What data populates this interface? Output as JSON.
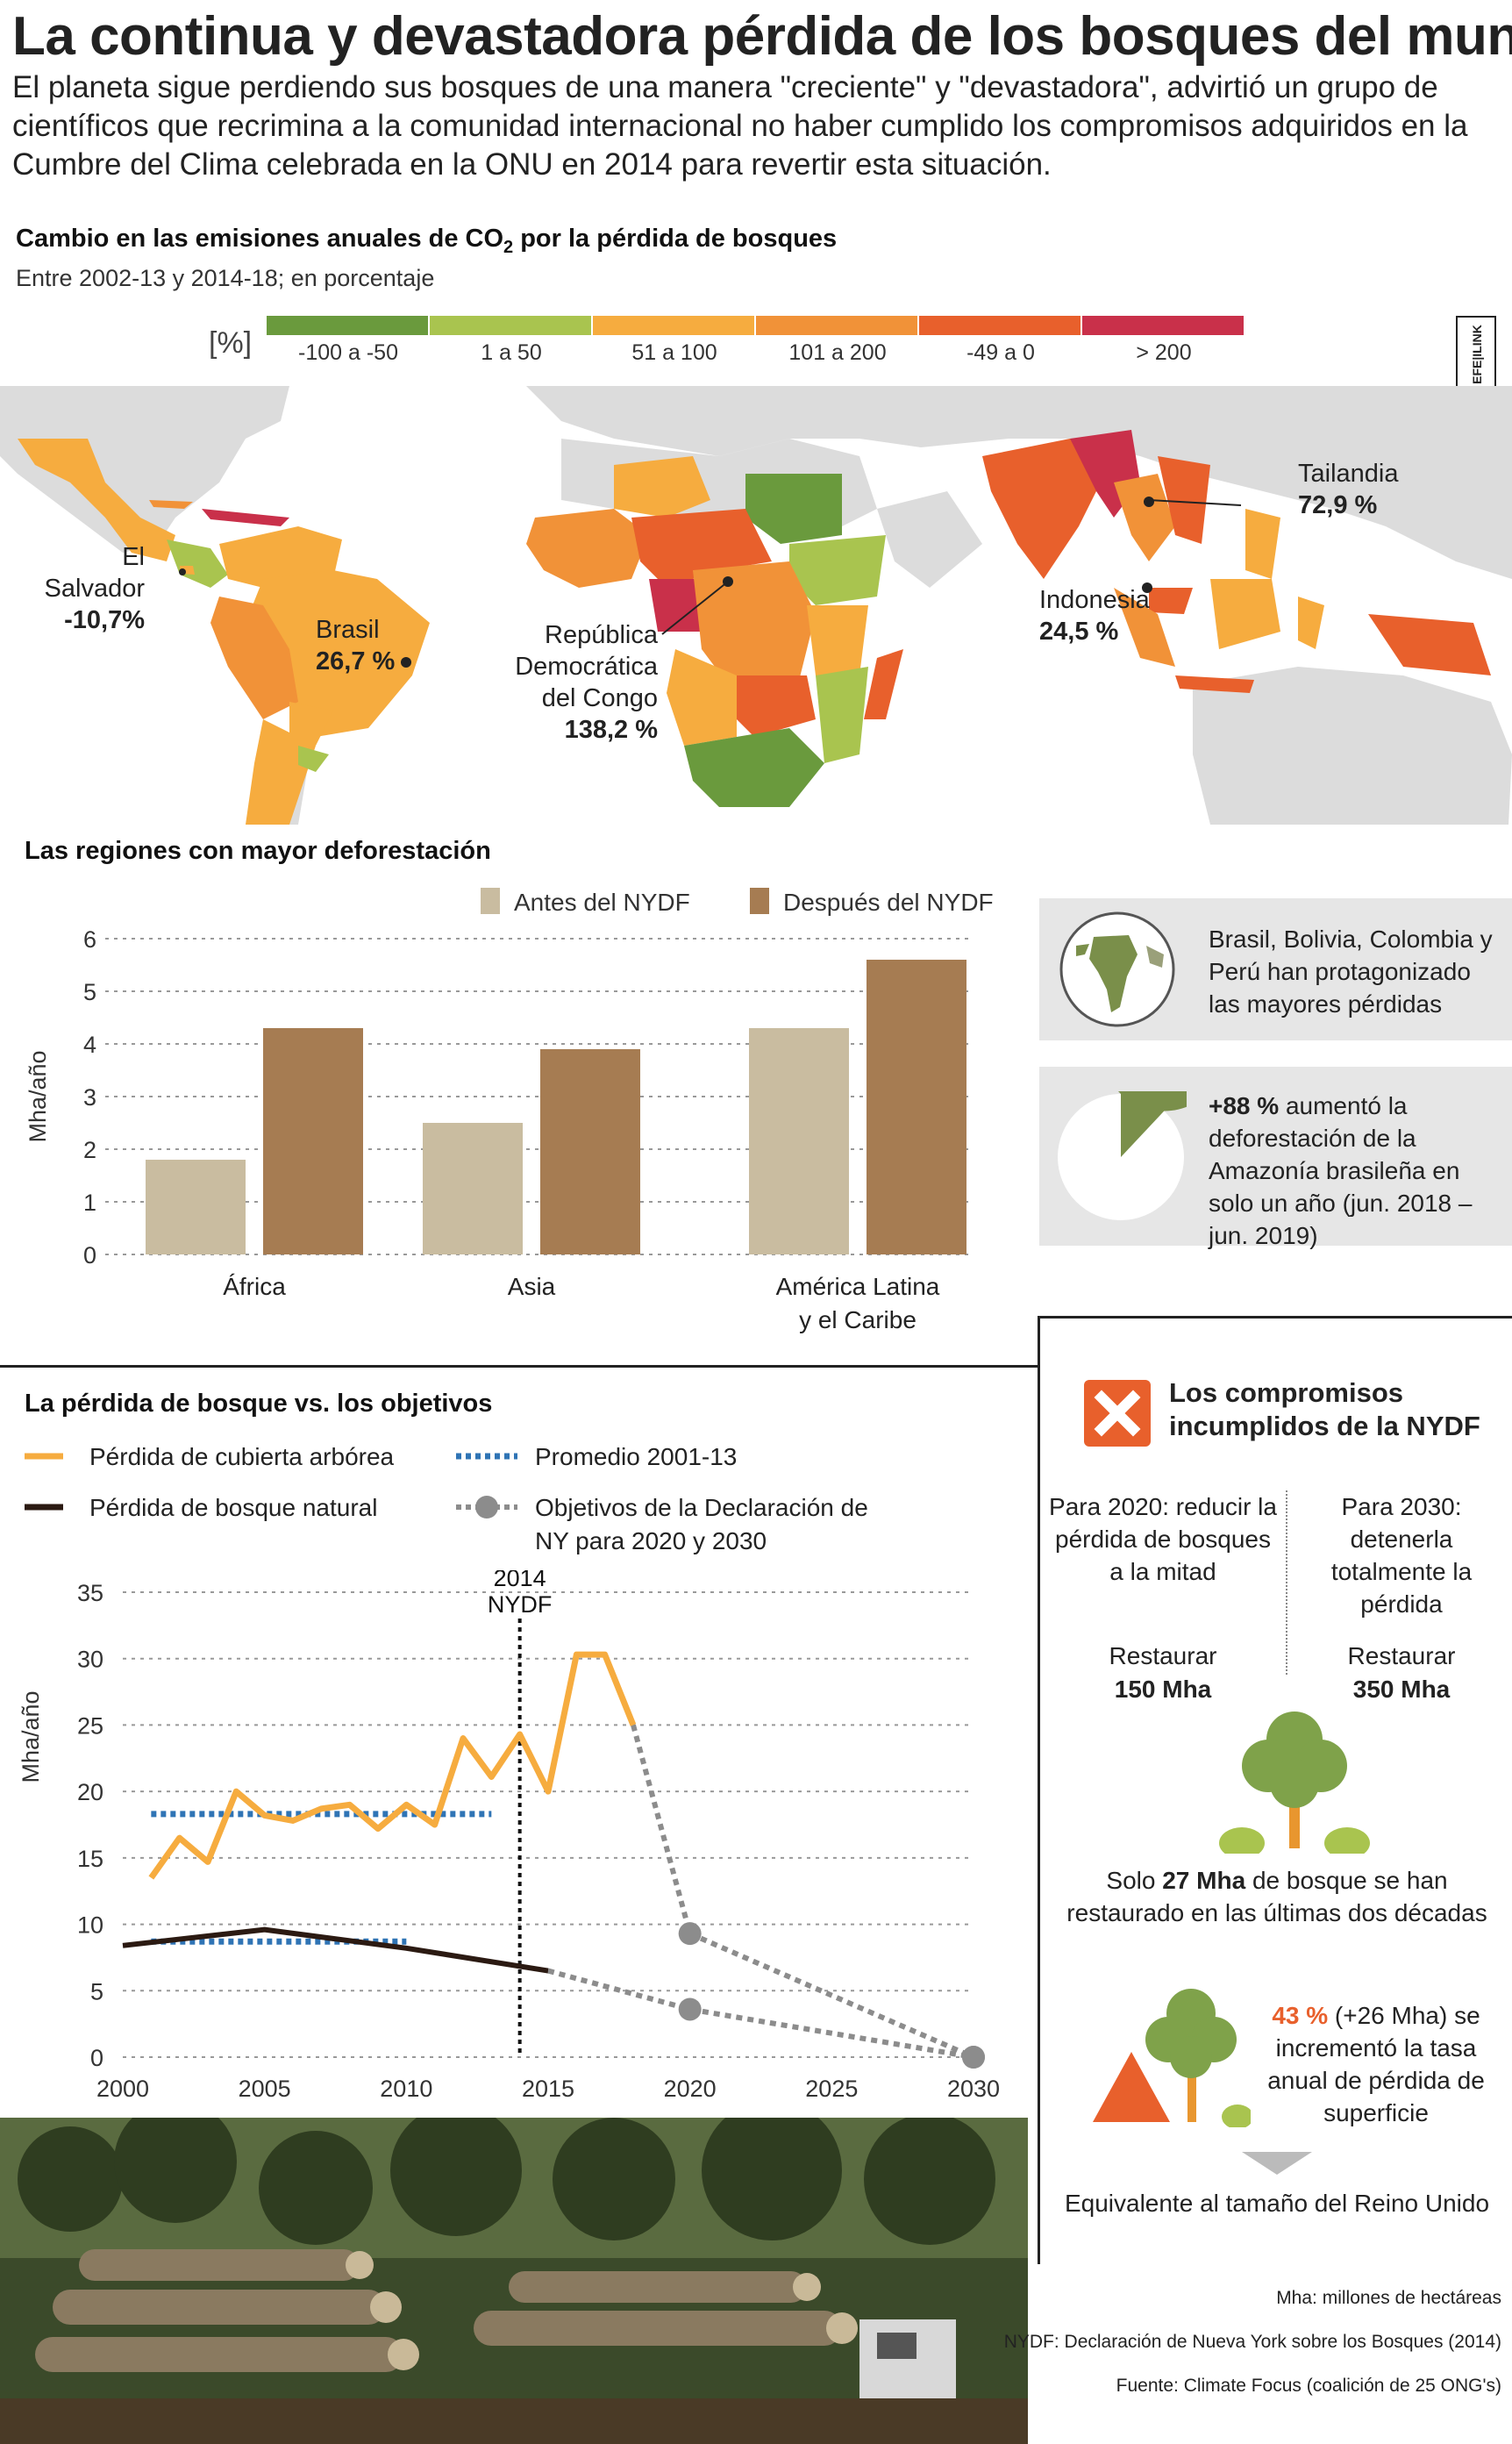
{
  "header": {
    "title": "La continua y devastadora pérdida de los bosques del mundo",
    "intro": "El planeta sigue perdiendo sus bosques de una manera \"creciente\" y \"devastadora\", advirtió un grupo de científicos que recrimina a la comunidad internacional no haber cumplido los compromisos adquiridos en la Cumbre del Clima celebrada en la ONU en 2014 para revertir esta situación."
  },
  "credit": "EFE|ILINK",
  "map": {
    "title_main": "Cambio en las emisiones anuales de CO",
    "title_sub": "2",
    "title_end": " por la pérdida de bosques",
    "subtitle": "Entre 2002-13 y 2014-18; en porcentaje",
    "unit": "[%]",
    "legend": [
      {
        "label": "-100 a -50",
        "color": "#6a9a3d"
      },
      {
        "label": "1 a 50",
        "color": "#a9c44f"
      },
      {
        "label": "51 a 100",
        "color": "#f6ac3f"
      },
      {
        "label": "101 a 200",
        "color": "#f19238"
      },
      {
        "label": "-49 a 0",
        "color": "#e8602c"
      },
      {
        "label": "> 200",
        "color": "#c9304a"
      }
    ],
    "callouts": [
      {
        "name": "El Salvador",
        "value": "-10,7%"
      },
      {
        "name": "Brasil",
        "value": "26,7 %"
      },
      {
        "name": "República Democrática del Congo",
        "value": "138,2 %"
      },
      {
        "name": "Tailandia",
        "value": "72,9 %"
      },
      {
        "name": "Indonesia",
        "value": "24,5 %"
      }
    ]
  },
  "chart_data": [
    {
      "type": "bar",
      "title": "Las regiones con mayor deforestación",
      "ylabel": "Mha/año",
      "ylim": [
        0,
        6
      ],
      "yticks": [
        "0",
        "1",
        "2",
        "3",
        "4",
        "5",
        "6"
      ],
      "categories": [
        "África",
        "Asia",
        "América Latina y el Caribe"
      ],
      "category_lines": [
        [
          "África"
        ],
        [
          "Asia"
        ],
        [
          "América Latina",
          "y el Caribe"
        ]
      ],
      "series": [
        {
          "name": "Antes del NYDF",
          "color": "#c9bca0",
          "values": [
            1.8,
            2.5,
            4.3
          ]
        },
        {
          "name": "Después del NYDF",
          "color": "#a67c52",
          "values": [
            4.3,
            3.9,
            5.6
          ]
        }
      ],
      "grid": true,
      "legend_position": "top"
    },
    {
      "type": "line",
      "title": "La pérdida de bosque vs. los objetivos",
      "ylabel": "Mha/año",
      "ylim": [
        0,
        35
      ],
      "xlim": [
        2000,
        2030
      ],
      "yticks": [
        "0",
        "5",
        "10",
        "15",
        "20",
        "25",
        "30",
        "35"
      ],
      "xticks": [
        "2000",
        "2005",
        "2010",
        "2015",
        "2020",
        "2025",
        "2030"
      ],
      "annotation": {
        "x": 2014,
        "lines": [
          "2014",
          "NYDF"
        ]
      },
      "series": [
        {
          "name": "Pérdida de cubierta arbórea",
          "color": "#f6ac3f",
          "style": "solid",
          "x": [
            2001,
            2002,
            2003,
            2004,
            2005,
            2006,
            2007,
            2008,
            2009,
            2010,
            2011,
            2012,
            2013,
            2014,
            2015,
            2016,
            2017,
            2018
          ],
          "y": [
            13.5,
            16.5,
            14.7,
            20,
            18.2,
            17.8,
            18.7,
            19,
            17.2,
            19,
            17.5,
            24,
            21.1,
            24.3,
            20,
            30.3,
            30.3,
            25
          ]
        },
        {
          "name": "Pérdida de bosque natural",
          "color": "#2b1a12",
          "style": "solid",
          "x": [
            2000,
            2005,
            2010,
            2015
          ],
          "y": [
            8.4,
            9.6,
            8.2,
            6.5
          ]
        },
        {
          "name": "Promedio 2001-13",
          "color": "#2f74b5",
          "style": "dotted",
          "segments": [
            {
              "x": [
                2001,
                2013
              ],
              "y": [
                18.3,
                18.3
              ]
            },
            {
              "x": [
                2001,
                2010
              ],
              "y": [
                8.7,
                8.7
              ]
            }
          ]
        },
        {
          "name": "Objetivos de la Declaración de NY para 2020 y 2030",
          "color": "#8c8c8c",
          "style": "dotted-markers",
          "segments": [
            {
              "x": [
                2018,
                2020,
                2030
              ],
              "y": [
                25,
                9.3,
                0
              ]
            },
            {
              "x": [
                2015,
                2020,
                2030
              ],
              "y": [
                6.5,
                3.6,
                0
              ]
            }
          ]
        }
      ],
      "grid": true,
      "legend_position": "top"
    }
  ],
  "panels": {
    "brazil_text": "Brasil, Bolivia, Colombia y Perú han protagonizado las mayores pérdidas",
    "amazon_value": "+88 %",
    "amazon_text": " aumentó la deforestación de la Amazonía brasileña en solo un año (jun. 2018 – jun. 2019)",
    "amazon_share": 0.88
  },
  "commitments": {
    "title_line1": "Los compromisos",
    "title_line2": "incumplidos de la NYDF",
    "col2020": {
      "heading": "Para 2020: reducir la pérdida de bosques a la mitad",
      "restore_label": "Restaurar",
      "restore_value": "150 Mha"
    },
    "col2030": {
      "heading": "Para 2030: detenerla totalmente la pérdida",
      "restore_label": "Restaurar",
      "restore_value": "350 Mha"
    },
    "restored_pre": "Solo ",
    "restored_value": "27 Mha",
    "restored_post": " de bosque se han restaurado en las últimas dos décadas",
    "increase_value": "43 %",
    "increase_text": " (+26 Mha) se incrementó la tasa anual de pérdida de superficie",
    "equivalent": "Equivalente al tamaño del Reino Unido"
  },
  "footnotes": [
    "Mha: millones de hectáreas",
    "NYDF: Declaración de Nueva York sobre los Bosques (2014)",
    "Fuente: Climate Focus (coalición de 25 ONG's)"
  ],
  "colors": {
    "orange": "#f6ac3f",
    "brown_line": "#2b1a12",
    "blue_dotted": "#2f74b5",
    "grey_target": "#8c8c8c",
    "tree_green": "#7fa24a",
    "trunk": "#e8962f",
    "accent_red": "#e8602c"
  }
}
